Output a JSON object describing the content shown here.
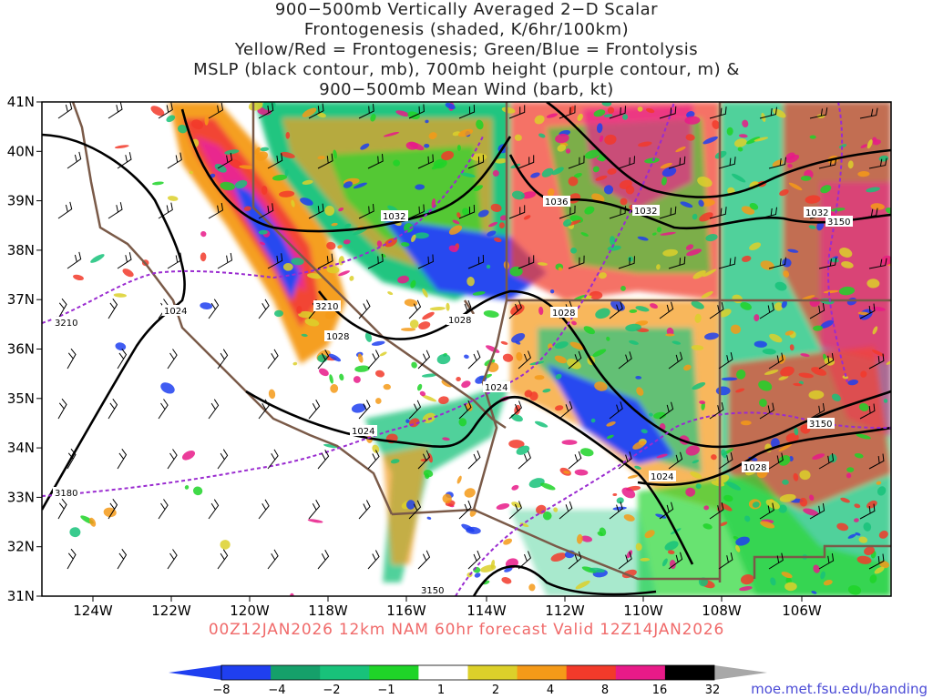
{
  "title_lines": [
    "900−500mb Vertically Averaged 2−D Scalar",
    "Frontogenesis (shaded, K/6hr/100km)",
    "Yellow/Red = Frontogenesis;  Green/Blue = Frontolysis",
    "MSLP (black contour, mb), 700mb height (purple contour, m) &",
    "900−500mb Mean Wind (barb, kt)"
  ],
  "subtitle": "00Z12JAN2026 12km NAM 60hr forecast Valid 12Z14JAN2026",
  "credit": "moe.met.fsu.edu/banding",
  "lat_labels": [
    "41N",
    "40N",
    "39N",
    "38N",
    "37N",
    "36N",
    "35N",
    "34N",
    "33N",
    "32N",
    "31N"
  ],
  "lon_labels": [
    "124W",
    "122W",
    "120W",
    "118W",
    "116W",
    "114W",
    "112W",
    "110W",
    "108W",
    "106W"
  ],
  "colorbar": {
    "labels": [
      "−8",
      "−4",
      "−2",
      "−1",
      "1",
      "2",
      "4",
      "8",
      "16",
      "32"
    ],
    "colors": [
      "#1f3ff0",
      "#15a06a",
      "#18c27a",
      "#1fd428",
      "#ffffff",
      "#dcd02a",
      "#f59a18",
      "#f23a2a",
      "#e81a88",
      "#000000"
    ],
    "arrow_left": "#1f3ff0",
    "arrow_right": "#a8a8a8"
  },
  "contour_labels": {
    "mslp": [
      "1032",
      "1036",
      "1032",
      "1032",
      "1024",
      "1028",
      "1028",
      "1028",
      "1024",
      "1024",
      "1024",
      "1028"
    ],
    "height": [
      "3210",
      "3210",
      "3180",
      "3150",
      "3150",
      "3150"
    ]
  }
}
